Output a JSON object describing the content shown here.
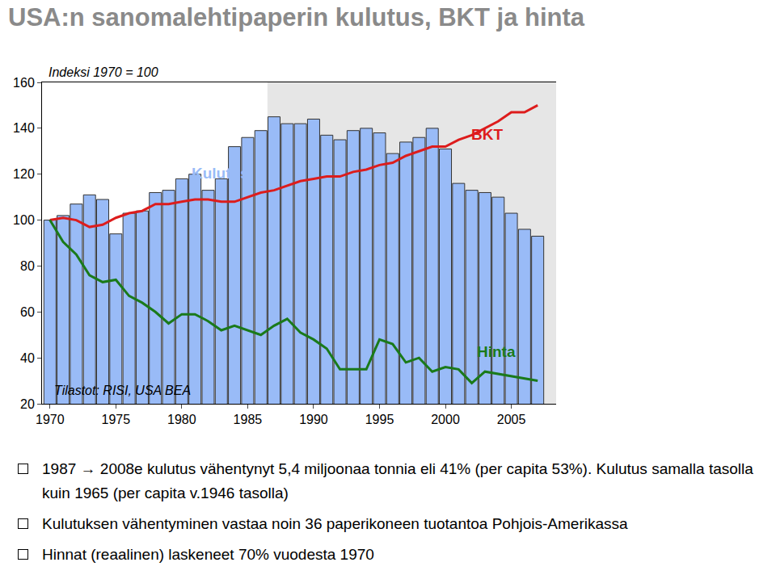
{
  "title": "USA:n sanomalehtipaperin kulutus, BKT ja hinta",
  "chart_data": {
    "type": "bar",
    "x": [
      1970,
      1971,
      1972,
      1973,
      1974,
      1975,
      1976,
      1977,
      1978,
      1979,
      1980,
      1981,
      1982,
      1983,
      1984,
      1985,
      1986,
      1987,
      1988,
      1989,
      1990,
      1991,
      1992,
      1993,
      1994,
      1995,
      1996,
      1997,
      1998,
      1999,
      2000,
      2001,
      2002,
      2003,
      2004,
      2005,
      2006,
      2007
    ],
    "series": [
      {
        "name": "Kulutus",
        "type": "bar",
        "color": "#99bbf7",
        "values": [
          100,
          102,
          107,
          111,
          109,
          94,
          103,
          104,
          112,
          113,
          118,
          120,
          113,
          118,
          132,
          136,
          139,
          145,
          142,
          142,
          144,
          137,
          135,
          139,
          140,
          138,
          129,
          134,
          136,
          140,
          131,
          116,
          113,
          112,
          110,
          103,
          96,
          93
        ]
      },
      {
        "name": "BKT",
        "type": "line",
        "color": "#dd1c1c",
        "values": [
          100,
          101,
          100,
          97,
          98,
          101,
          103,
          104,
          107,
          107,
          108,
          109,
          109,
          108,
          108,
          110,
          112,
          113,
          115,
          117,
          118,
          119,
          119,
          121,
          122,
          124,
          125,
          128,
          130,
          132,
          132,
          135,
          137,
          140,
          143,
          147,
          147,
          150
        ]
      },
      {
        "name": "Hinta",
        "type": "line",
        "color": "#1a7a1a",
        "values": [
          100,
          90.5,
          85,
          76,
          73,
          74,
          67,
          64,
          60,
          55,
          59,
          59,
          56,
          52,
          54,
          52,
          50,
          54,
          57,
          51,
          48,
          44,
          35,
          35,
          35,
          48,
          46,
          38,
          40,
          34,
          36,
          35,
          29,
          34,
          33,
          32,
          31,
          30
        ]
      }
    ],
    "xlim": [
      1969.4,
      2008.4
    ],
    "xticks": [
      1970,
      1975,
      1980,
      1985,
      1990,
      1995,
      2000,
      2005
    ],
    "ylim": [
      20,
      160
    ],
    "yticks": [
      20,
      40,
      60,
      80,
      100,
      120,
      140,
      160
    ],
    "y2lim": [
      20,
      160
    ],
    "y2ticks": [
      20,
      40,
      60,
      80,
      100,
      120,
      140,
      160
    ],
    "grid": false,
    "annotations": [
      "Indeksi 1970 = 100",
      "Tilastot: RISI, USA BEA"
    ],
    "shaded_range": [
      1986.5,
      2008.4
    ]
  },
  "bullets": [
    "1987 → 2008e kulutus vähentynyt 5,4 miljoonaa tonnia eli 41% (per capita 53%). Kulutus samalla tasolla kuin 1965 (per capita v.1946 tasolla)",
    "Kulutuksen vähentyminen vastaa noin 36 paperikoneen tuotantoa Pohjois-Amerikassa",
    "Hinnat (reaalinen) laskeneet 70% vuodesta 1970"
  ]
}
